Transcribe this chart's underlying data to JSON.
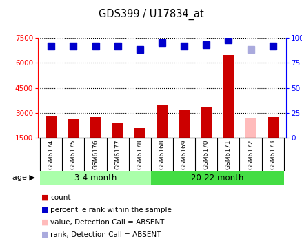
{
  "title": "GDS399 / U17834_at",
  "samples": [
    "GSM6174",
    "GSM6175",
    "GSM6176",
    "GSM6177",
    "GSM6178",
    "GSM6168",
    "GSM6169",
    "GSM6170",
    "GSM6171",
    "GSM6172",
    "GSM6173"
  ],
  "counts": [
    2820,
    2630,
    2750,
    2380,
    2080,
    3480,
    3150,
    3380,
    6450,
    2700,
    2760
  ],
  "ranks": [
    92,
    92,
    92,
    92,
    88,
    95,
    92,
    93,
    98,
    88,
    92
  ],
  "bar_colors": [
    "#cc0000",
    "#cc0000",
    "#cc0000",
    "#cc0000",
    "#cc0000",
    "#cc0000",
    "#cc0000",
    "#cc0000",
    "#cc0000",
    "#ffbbbb",
    "#cc0000"
  ],
  "rank_colors": [
    "#0000cc",
    "#0000cc",
    "#0000cc",
    "#0000cc",
    "#0000cc",
    "#0000cc",
    "#0000cc",
    "#0000cc",
    "#0000cc",
    "#aaaadd",
    "#0000cc"
  ],
  "ylim_left": [
    1500,
    7500
  ],
  "ylim_right": [
    0,
    100
  ],
  "yticks_left": [
    1500,
    3000,
    4500,
    6000,
    7500
  ],
  "yticks_right": [
    0,
    25,
    50,
    75,
    100
  ],
  "group1_label": "3-4 month",
  "group2_label": "20-22 month",
  "group1_count": 5,
  "group2_count": 6,
  "age_label": "age",
  "legend_items": [
    {
      "label": "count",
      "color": "#cc0000"
    },
    {
      "label": "percentile rank within the sample",
      "color": "#0000cc"
    },
    {
      "label": "value, Detection Call = ABSENT",
      "color": "#ffbbbb"
    },
    {
      "label": "rank, Detection Call = ABSENT",
      "color": "#aaaadd"
    }
  ],
  "bg_color": "#ffffff",
  "plot_bg": "#ffffff",
  "xtick_bg": "#d8d8d8",
  "group_bg_light": "#aaffaa",
  "group_bg_dark": "#44dd44",
  "rank_marker_size": 7,
  "bar_width": 0.5
}
